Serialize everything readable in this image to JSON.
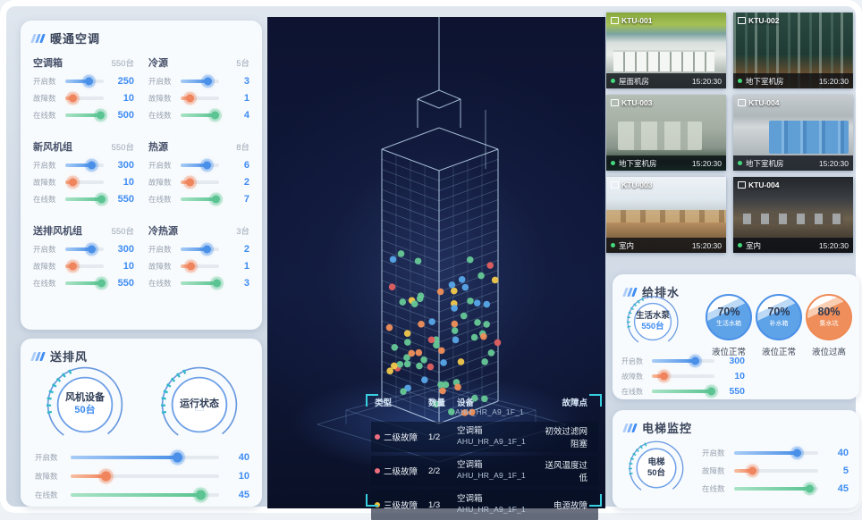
{
  "theme": {
    "blue": "#3f8cf3",
    "orange": "#f0845c",
    "green": "#5bc492",
    "teal": "#35c3d8",
    "navy_bg": "#0d1330",
    "fault_red": "#ee6e7e",
    "fault_yellow": "#f3c13a"
  },
  "hvac": {
    "title": "暖通空调",
    "groups": [
      {
        "name": "空调箱",
        "total": "550台",
        "sliders": [
          {
            "label": "开启数",
            "value": "250",
            "pct": 62
          },
          {
            "label": "故障数",
            "value": "10",
            "pct": 22
          },
          {
            "label": "在线数",
            "value": "500",
            "pct": 93
          }
        ]
      },
      {
        "name": "冷源",
        "total": "5台",
        "sliders": [
          {
            "label": "开启数",
            "value": "3",
            "pct": 72
          },
          {
            "label": "故障数",
            "value": "1",
            "pct": 25
          },
          {
            "label": "在线数",
            "value": "4",
            "pct": 90
          }
        ]
      },
      {
        "name": "新风机组",
        "total": "550台",
        "sliders": [
          {
            "label": "开启数",
            "value": "300",
            "pct": 70
          },
          {
            "label": "故障数",
            "value": "10",
            "pct": 22
          },
          {
            "label": "在线数",
            "value": "550",
            "pct": 96
          }
        ]
      },
      {
        "name": "热源",
        "total": "8台",
        "sliders": [
          {
            "label": "开启数",
            "value": "6",
            "pct": 70
          },
          {
            "label": "故障数",
            "value": "2",
            "pct": 25
          },
          {
            "label": "在线数",
            "value": "7",
            "pct": 92
          }
        ]
      },
      {
        "name": "送排风机组",
        "total": "550台",
        "sliders": [
          {
            "label": "开启数",
            "value": "300",
            "pct": 70
          },
          {
            "label": "故障数",
            "value": "10",
            "pct": 22
          },
          {
            "label": "在线数",
            "value": "550",
            "pct": 96
          }
        ]
      },
      {
        "name": "冷热源",
        "total": "3台",
        "sliders": [
          {
            "label": "开启数",
            "value": "2",
            "pct": 70
          },
          {
            "label": "故障数",
            "value": "1",
            "pct": 28
          },
          {
            "label": "在线数",
            "value": "3",
            "pct": 95
          }
        ]
      }
    ]
  },
  "fan": {
    "title": "送排风",
    "circle1": {
      "name": "风机设备",
      "count": "50台"
    },
    "circle2": {
      "name": "运行状态"
    },
    "sliders": [
      {
        "label": "开启数",
        "value": "40",
        "pct": 72
      },
      {
        "label": "故障数",
        "value": "10",
        "pct": 24
      },
      {
        "label": "在线数",
        "value": "45",
        "pct": 88
      }
    ]
  },
  "monitor": {
    "table": {
      "headers": [
        "类型",
        "数量",
        "设备",
        "故障点"
      ],
      "partial_row_device": "AHU_HR_A9_1F_1",
      "rows": [
        {
          "level": "二级故障",
          "severity": "red",
          "count": "1/2",
          "device_type": "空调箱",
          "device_id": "AHU_HR_A9_1F_1",
          "fault": "初效过滤网阻塞"
        },
        {
          "level": "二级故障",
          "severity": "red",
          "count": "2/2",
          "device_type": "空调箱",
          "device_id": "AHU_HR_A9_1F_1",
          "fault": "送风温度过低"
        },
        {
          "level": "三级故障",
          "severity": "yellow",
          "count": "1/3",
          "device_type": "空调箱",
          "device_id": "AHU_HR_A9_1F_1",
          "fault": "电源故障"
        }
      ]
    }
  },
  "cameras": [
    {
      "id": "KTU-001",
      "location": "屋面机房",
      "time": "15:20:30"
    },
    {
      "id": "KTU-002",
      "location": "地下室机房",
      "time": "15:20:30"
    },
    {
      "id": "KTU-003",
      "location": "地下室机房",
      "time": "15:20:30"
    },
    {
      "id": "KTU-004",
      "location": "地下室机房",
      "time": "15:20:30"
    },
    {
      "id": "KTU-003",
      "location": "室内",
      "time": "15:20:30"
    },
    {
      "id": "KTU-004",
      "location": "室内",
      "time": "15:20:30"
    }
  ],
  "water": {
    "title": "给排水",
    "circle": {
      "name": "生活水泵",
      "count": "550台"
    },
    "gauges": [
      {
        "pct": "70%",
        "label": "生活水箱",
        "status": "液位正常",
        "tone": "blue"
      },
      {
        "pct": "70%",
        "label": "补水箱",
        "status": "液位正常",
        "tone": "blue"
      },
      {
        "pct": "80%",
        "label": "集水坑",
        "status": "液位过高",
        "tone": "orange"
      }
    ],
    "sliders": [
      {
        "label": "开启数",
        "value": "300",
        "pct": 70
      },
      {
        "label": "故障数",
        "value": "10",
        "pct": 20
      },
      {
        "label": "在线数",
        "value": "550",
        "pct": 95
      }
    ]
  },
  "elevator": {
    "title": "电梯监控",
    "circle": {
      "name": "电梯",
      "count": "50台"
    },
    "sliders": [
      {
        "label": "开启数",
        "value": "40",
        "pct": 75
      },
      {
        "label": "故障数",
        "value": "5",
        "pct": 22
      },
      {
        "label": "在线数",
        "value": "45",
        "pct": 90
      }
    ]
  }
}
